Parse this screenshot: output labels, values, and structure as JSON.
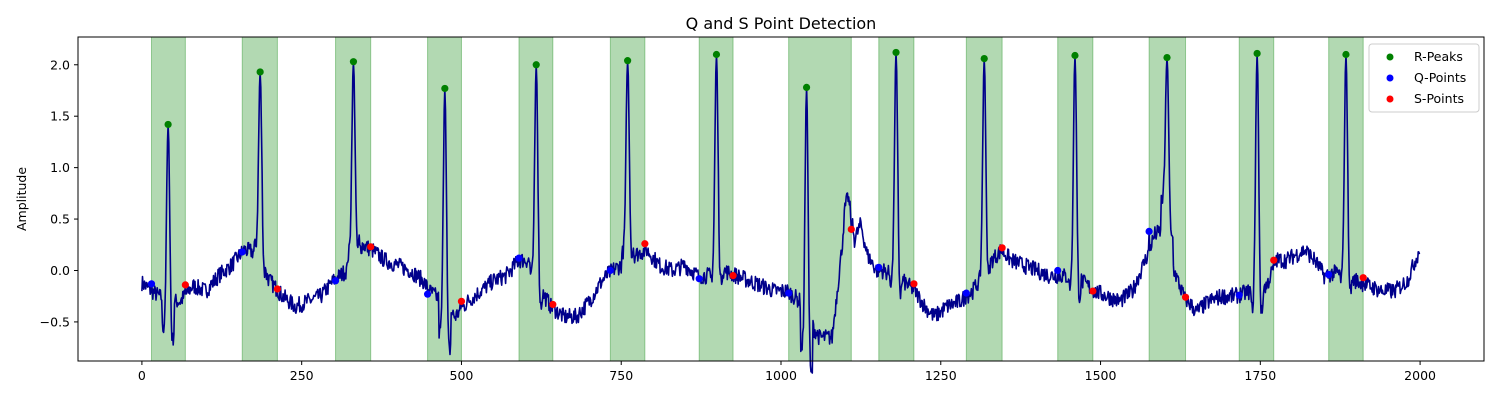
{
  "chart_data": {
    "type": "line",
    "title": "Q and S Point Detection",
    "xlabel": "",
    "ylabel": "Amplitude",
    "xlim": [
      -100,
      2100
    ],
    "ylim": [
      -0.88,
      2.27
    ],
    "x_ticks": [
      0,
      250,
      500,
      750,
      1000,
      1250,
      1500,
      1750,
      2000
    ],
    "y_ticks": [
      -0.5,
      0.0,
      0.5,
      1.0,
      1.5,
      2.0
    ],
    "y_tick_labels": [
      "−0.5",
      "0.0",
      "0.5",
      "1.0",
      "1.5",
      "2.0"
    ],
    "grid": false,
    "legend_position": "top-right",
    "colors": {
      "signal": "#00008b",
      "r_peaks": "#008000",
      "q_points": "#0000ff",
      "s_points": "#ff0000",
      "span": "#008000"
    },
    "signal_x_range": [
      0,
      1999
    ],
    "signal_baseline": [
      [
        0,
        -0.12
      ],
      [
        15,
        -0.2
      ],
      [
        40,
        -0.3
      ],
      [
        60,
        -0.3
      ],
      [
        80,
        -0.15
      ],
      [
        100,
        -0.2
      ],
      [
        120,
        -0.05
      ],
      [
        140,
        0.05
      ],
      [
        160,
        0.2
      ],
      [
        175,
        0.18
      ],
      [
        200,
        -0.1
      ],
      [
        220,
        -0.25
      ],
      [
        240,
        -0.35
      ],
      [
        260,
        -0.3
      ],
      [
        280,
        -0.25
      ],
      [
        300,
        -0.1
      ],
      [
        320,
        0.0
      ],
      [
        345,
        0.25
      ],
      [
        360,
        0.2
      ],
      [
        380,
        0.1
      ],
      [
        400,
        0.05
      ],
      [
        420,
        0.0
      ],
      [
        440,
        -0.1
      ],
      [
        450,
        -0.2
      ],
      [
        470,
        -0.3
      ],
      [
        490,
        -0.45
      ],
      [
        510,
        -0.3
      ],
      [
        530,
        -0.2
      ],
      [
        550,
        -0.1
      ],
      [
        570,
        -0.05
      ],
      [
        590,
        0.1
      ],
      [
        605,
        0.1
      ],
      [
        625,
        -0.2
      ],
      [
        640,
        -0.35
      ],
      [
        660,
        -0.45
      ],
      [
        680,
        -0.45
      ],
      [
        700,
        -0.3
      ],
      [
        720,
        -0.1
      ],
      [
        735,
        0.0
      ],
      [
        750,
        0.05
      ],
      [
        770,
        0.15
      ],
      [
        790,
        0.2
      ],
      [
        810,
        0.05
      ],
      [
        830,
        0.0
      ],
      [
        850,
        0.05
      ],
      [
        870,
        -0.05
      ],
      [
        890,
        -0.05
      ],
      [
        910,
        0.0
      ],
      [
        930,
        -0.05
      ],
      [
        950,
        -0.1
      ],
      [
        970,
        -0.15
      ],
      [
        990,
        -0.2
      ],
      [
        1010,
        -0.2
      ],
      [
        1030,
        -0.3
      ],
      [
        1045,
        -0.5
      ],
      [
        1060,
        -0.65
      ],
      [
        1080,
        -0.65
      ],
      [
        1095,
        0.2
      ],
      [
        1100,
        0.6
      ],
      [
        1105,
        0.72
      ],
      [
        1115,
        0.3
      ],
      [
        1125,
        0.45
      ],
      [
        1135,
        0.15
      ],
      [
        1150,
        0.0
      ],
      [
        1160,
        0.0
      ],
      [
        1190,
        -0.1
      ],
      [
        1210,
        -0.2
      ],
      [
        1225,
        -0.35
      ],
      [
        1240,
        -0.45
      ],
      [
        1260,
        -0.35
      ],
      [
        1280,
        -0.3
      ],
      [
        1300,
        -0.2
      ],
      [
        1330,
        0.1
      ],
      [
        1345,
        0.2
      ],
      [
        1360,
        0.1
      ],
      [
        1380,
        0.05
      ],
      [
        1400,
        0.0
      ],
      [
        1420,
        -0.05
      ],
      [
        1440,
        -0.05
      ],
      [
        1470,
        -0.1
      ],
      [
        1490,
        -0.2
      ],
      [
        1510,
        -0.25
      ],
      [
        1530,
        -0.3
      ],
      [
        1550,
        -0.2
      ],
      [
        1570,
        0.1
      ],
      [
        1585,
        0.35
      ],
      [
        1600,
        0.4
      ],
      [
        1615,
        0.0
      ],
      [
        1630,
        -0.25
      ],
      [
        1650,
        -0.4
      ],
      [
        1670,
        -0.3
      ],
      [
        1690,
        -0.25
      ],
      [
        1710,
        -0.25
      ],
      [
        1725,
        -0.22
      ],
      [
        1760,
        -0.15
      ],
      [
        1775,
        0.1
      ],
      [
        1790,
        0.1
      ],
      [
        1805,
        0.15
      ],
      [
        1820,
        0.2
      ],
      [
        1835,
        0.1
      ],
      [
        1850,
        -0.05
      ],
      [
        1870,
        -0.02
      ],
      [
        1900,
        -0.1
      ],
      [
        1920,
        -0.15
      ],
      [
        1940,
        -0.2
      ],
      [
        1960,
        -0.2
      ],
      [
        1980,
        -0.1
      ],
      [
        1999,
        0.2
      ]
    ],
    "beats": [
      {
        "span": [
          15,
          68
        ],
        "q": [
          15,
          -0.13
        ],
        "r": [
          41,
          1.42
        ],
        "s": [
          68,
          -0.14
        ]
      },
      {
        "span": [
          157,
          212
        ],
        "q": [
          157,
          0.18
        ],
        "r": [
          185,
          1.93
        ],
        "s": [
          212,
          -0.18
        ]
      },
      {
        "span": [
          303,
          358
        ],
        "q": [
          303,
          -0.1
        ],
        "r": [
          331,
          2.03
        ],
        "s": [
          358,
          0.23
        ]
      },
      {
        "span": [
          447,
          500
        ],
        "q": [
          447,
          -0.23
        ],
        "r": [
          474,
          1.77
        ],
        "s": [
          500,
          -0.3
        ]
      },
      {
        "span": [
          590,
          643
        ],
        "q": [
          590,
          0.12
        ],
        "r": [
          617,
          2.0
        ],
        "s": [
          643,
          -0.33
        ]
      },
      {
        "span": [
          733,
          787
        ],
        "q": [
          733,
          0.0
        ],
        "r": [
          760,
          2.04
        ],
        "s": [
          787,
          0.26
        ]
      },
      {
        "span": [
          872,
          925
        ],
        "q": [
          872,
          -0.08
        ],
        "r": [
          899,
          2.1
        ],
        "s": [
          925,
          -0.05
        ]
      },
      {
        "span": [
          1012,
          1110
        ],
        "q": [
          1012,
          -0.22
        ],
        "r": [
          1040,
          1.78
        ],
        "s": [
          1110,
          0.4
        ]
      },
      {
        "span": [
          1153,
          1208
        ],
        "q": [
          1153,
          0.03
        ],
        "r": [
          1180,
          2.12
        ],
        "s": [
          1208,
          -0.13
        ]
      },
      {
        "span": [
          1290,
          1346
        ],
        "q": [
          1290,
          -0.22
        ],
        "r": [
          1318,
          2.06
        ],
        "s": [
          1346,
          0.22
        ]
      },
      {
        "span": [
          1433,
          1488
        ],
        "q": [
          1433,
          0.0
        ],
        "r": [
          1460,
          2.09
        ],
        "s": [
          1488,
          -0.2
        ]
      },
      {
        "span": [
          1576,
          1633
        ],
        "q": [
          1576,
          0.38
        ],
        "r": [
          1604,
          2.07
        ],
        "s": [
          1633,
          -0.26
        ]
      },
      {
        "span": [
          1717,
          1771
        ],
        "q": [
          1717,
          -0.24
        ],
        "r": [
          1745,
          2.11
        ],
        "s": [
          1771,
          0.1
        ]
      },
      {
        "span": [
          1857,
          1911
        ],
        "q": [
          1857,
          -0.04
        ],
        "r": [
          1884,
          2.1
        ],
        "s": [
          1911,
          -0.07
        ]
      }
    ],
    "series": [
      {
        "name": "R-Peaks",
        "marker": "circle",
        "color": "#008000"
      },
      {
        "name": "Q-Points",
        "marker": "circle",
        "color": "#0000ff"
      },
      {
        "name": "S-Points",
        "marker": "circle",
        "color": "#ff0000"
      }
    ]
  }
}
